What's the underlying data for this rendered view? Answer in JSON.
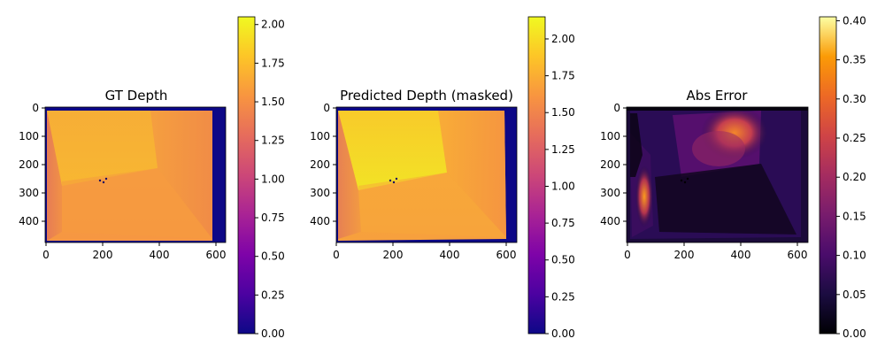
{
  "chart_data": [
    {
      "type": "heatmap",
      "title": "GT Depth",
      "xlim": [
        0,
        640
      ],
      "ylim": [
        480,
        0
      ],
      "x_ticks": [
        0,
        200,
        400,
        600
      ],
      "y_ticks": [
        0,
        100,
        200,
        300,
        400
      ],
      "colormap": "plasma",
      "colorbar": {
        "min": 0.0,
        "max": 2.05,
        "ticks": [
          "0.00",
          "0.25",
          "0.50",
          "0.75",
          "1.00",
          "1.25",
          "1.50",
          "1.75",
          "2.00"
        ]
      },
      "description_values": {
        "floor_center_depth": 1.55,
        "far_wall_depth": 1.9,
        "left_near_depth": 1.2,
        "right_border_depth": 0.0
      }
    },
    {
      "type": "heatmap",
      "title": "Predicted Depth (masked)",
      "xlim": [
        0,
        640
      ],
      "ylim": [
        480,
        0
      ],
      "x_ticks": [
        0,
        200,
        400,
        600
      ],
      "y_ticks": [
        0,
        100,
        200,
        300,
        400
      ],
      "colormap": "plasma",
      "colorbar": {
        "min": 0.0,
        "max": 2.15,
        "ticks": [
          "0.00",
          "0.25",
          "0.50",
          "0.75",
          "1.00",
          "1.25",
          "1.50",
          "1.75",
          "2.00"
        ]
      },
      "description_values": {
        "floor_center_depth": 1.6,
        "far_wall_depth": 2.0,
        "left_near_depth": 1.25,
        "right_border_depth": 0.0
      }
    },
    {
      "type": "heatmap",
      "title": "Abs Error",
      "xlim": [
        0,
        640
      ],
      "ylim": [
        480,
        0
      ],
      "x_ticks": [
        0,
        200,
        400,
        600
      ],
      "y_ticks": [
        0,
        100,
        200,
        300,
        400
      ],
      "colormap": "inferno",
      "colorbar": {
        "min": 0.0,
        "max": 0.405,
        "ticks": [
          "0.00",
          "0.05",
          "0.10",
          "0.15",
          "0.20",
          "0.25",
          "0.30",
          "0.35",
          "0.40"
        ]
      },
      "description_values": {
        "peak_error_far_corner": 0.3,
        "peak_error_left_wall": 0.3,
        "typical_error": 0.08
      }
    }
  ]
}
